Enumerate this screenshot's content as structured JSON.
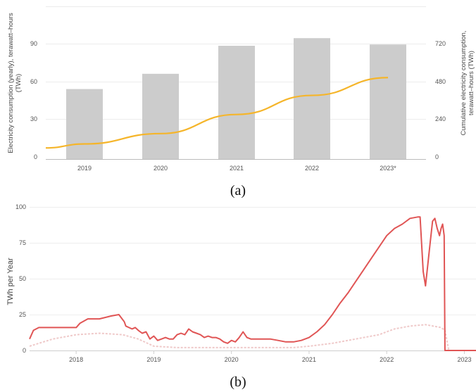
{
  "chart_data": [
    {
      "id": "a",
      "type": "bar",
      "categories": [
        "2019",
        "2020",
        "2021",
        "2022",
        "2023*"
      ],
      "series": [
        {
          "type": "bar",
          "values": [
            55,
            67,
            89,
            95,
            90
          ]
        },
        {
          "type": "line",
          "values": [
            95,
            160,
            280,
            400,
            512
          ]
        }
      ],
      "ylabel": "Electricity consumption (yearly), terawatt-hours (TWh)",
      "y2label": "Cumulative electricity consumption, terawatt-hours (TWh)",
      "yticks": [
        "0",
        "30",
        "60",
        "90"
      ],
      "y2ticks": [
        "0",
        "240",
        "480",
        "720"
      ],
      "ylim": [
        0,
        120
      ],
      "y2lim": [
        0,
        960
      ],
      "colors": {
        "bar": "#cccccc",
        "line": "#f5b52a"
      },
      "caption": "(a)"
    },
    {
      "id": "b",
      "type": "line",
      "ylabel": "TWh per Year",
      "xticks": [
        "2018",
        "2019",
        "2020",
        "2021",
        "2022",
        "2023"
      ],
      "yticks": [
        "0",
        "25",
        "50",
        "75",
        "100"
      ],
      "xlim": [
        2017.4,
        2023.15
      ],
      "ylim": [
        0,
        100
      ],
      "colors": {
        "main": "#e05555",
        "secondary": "#efc9c9"
      },
      "series": [
        {
          "x": [
            2017.4,
            2017.45,
            2017.52,
            2017.65,
            2017.8,
            2017.95,
            2018.0,
            2018.05,
            2018.15,
            2018.3,
            2018.45,
            2018.55,
            2018.62,
            2018.64,
            2018.68,
            2018.72,
            2018.76,
            2018.8,
            2018.85,
            2018.9,
            2018.95,
            2019.0,
            2019.05,
            2019.1,
            2019.15,
            2019.2,
            2019.25,
            2019.3,
            2019.35,
            2019.4,
            2019.45,
            2019.5,
            2019.55,
            2019.6,
            2019.65,
            2019.7,
            2019.75,
            2019.8,
            2019.85,
            2019.9,
            2019.95,
            2020.0,
            2020.05,
            2020.1,
            2020.15,
            2020.2,
            2020.25,
            2020.3,
            2020.4,
            2020.5,
            2020.6,
            2020.7,
            2020.8,
            2020.9,
            2021.0,
            2021.1,
            2021.2,
            2021.3,
            2021.4,
            2021.5,
            2021.6,
            2021.7,
            2021.8,
            2021.9,
            2022.0,
            2022.1,
            2022.2,
            2022.3,
            2022.4,
            2022.43,
            2022.47,
            2022.5,
            2022.53,
            2022.56,
            2022.59,
            2022.62,
            2022.65,
            2022.68,
            2022.7,
            2022.72,
            2022.74,
            2022.75,
            2022.78,
            2022.9,
            2023.0,
            2023.15
          ],
          "y": [
            8,
            14,
            16,
            16,
            16,
            16,
            16,
            19,
            22,
            22,
            24,
            25,
            20,
            17,
            16,
            15,
            16,
            14,
            12,
            13,
            8,
            10,
            7,
            8,
            9,
            8,
            8,
            11,
            12,
            11,
            15,
            13,
            12,
            11,
            9,
            10,
            9,
            9,
            8,
            6,
            5,
            7,
            6,
            9,
            13,
            9,
            8,
            8,
            8,
            8,
            7,
            6,
            6,
            7,
            9,
            13,
            18,
            25,
            33,
            40,
            48,
            56,
            64,
            72,
            80,
            85,
            88,
            92,
            93,
            93,
            55,
            45,
            60,
            75,
            90,
            92,
            85,
            80,
            85,
            88,
            80,
            0,
            0,
            0,
            0,
            0
          ]
        },
        {
          "x": [
            2017.4,
            2017.7,
            2018.0,
            2018.3,
            2018.6,
            2018.8,
            2019.0,
            2019.3,
            2019.6,
            2020.0,
            2020.4,
            2020.8,
            2021.0,
            2021.3,
            2021.6,
            2021.9,
            2022.1,
            2022.3,
            2022.5,
            2022.7,
            2022.75,
            2022.8,
            2023.15
          ],
          "y": [
            3,
            8,
            11,
            12,
            11,
            8,
            3,
            2,
            2,
            2,
            2,
            2,
            3,
            5,
            8,
            11,
            15,
            17,
            18,
            16,
            14,
            0,
            0
          ]
        }
      ],
      "caption": "(b)"
    }
  ]
}
